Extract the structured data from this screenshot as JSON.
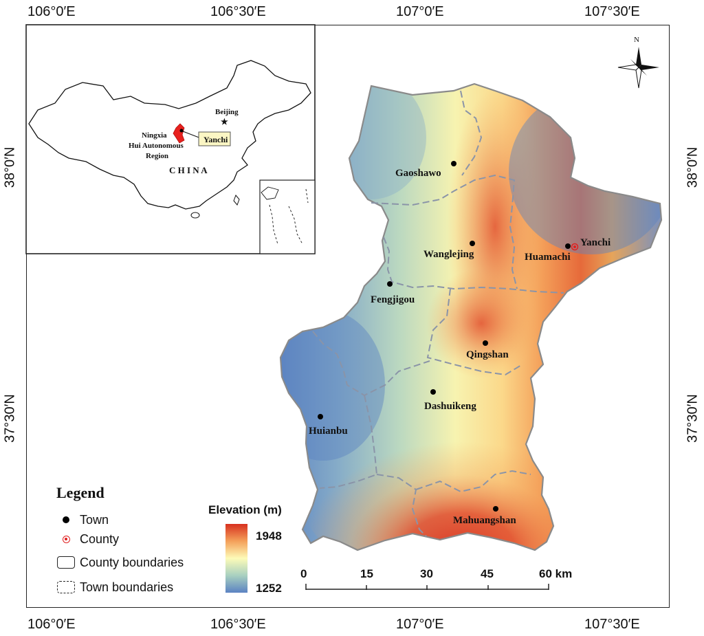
{
  "axes": {
    "top": [
      "106°0′E",
      "106°30′E",
      "107°0′E",
      "107°30′E"
    ],
    "bottom": [
      "106°0′E",
      "106°30′E",
      "107°0′E",
      "107°30′E"
    ],
    "left": [
      "38°0′N",
      "37°30′N"
    ],
    "right": [
      "38°0′N",
      "37°30′N"
    ]
  },
  "towns": [
    {
      "name": "Gaoshawo"
    },
    {
      "name": "Wanglejing"
    },
    {
      "name": "Huamachi"
    },
    {
      "name": "Fengjigou"
    },
    {
      "name": "Qingshan"
    },
    {
      "name": "Dashuikeng"
    },
    {
      "name": "Huianbu"
    },
    {
      "name": "Mahuangshan"
    }
  ],
  "county": {
    "name": "Yanchi"
  },
  "inset": {
    "beijing": "Beijing",
    "region_lines": [
      "Ningxia",
      "Hui Autonomous",
      "Region"
    ],
    "country": "C H I N A",
    "callout": "Yanchi"
  },
  "north": "N",
  "legend": {
    "title": "Legend",
    "items": [
      "Town",
      "County",
      "County boundaries",
      "Town boundaries"
    ]
  },
  "elevation": {
    "title": "Elevation (m)",
    "max": "1948",
    "min": "1252",
    "colors": [
      "#d7301f",
      "#f4a05a",
      "#fdfbb8",
      "#a8d0c0",
      "#5b82c2"
    ]
  },
  "scale_bar": {
    "ticks": [
      "0",
      "15",
      "30",
      "45",
      "60 km"
    ]
  },
  "colors": {
    "county_marker": "#e02020",
    "ningxia_fill": "#e8211e",
    "callout_fill": "#fbf6c4"
  }
}
